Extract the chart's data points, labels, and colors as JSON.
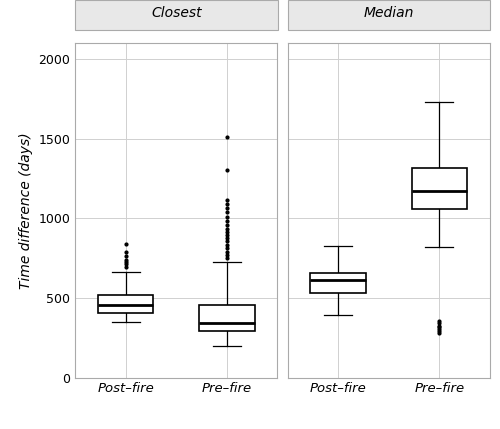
{
  "panels": [
    "Closest",
    "Median"
  ],
  "categories": [
    "Post–fire",
    "Pre–fire"
  ],
  "ylabel": "Time difference (days)",
  "ylim": [
    0,
    2100
  ],
  "yticks": [
    0,
    500,
    1000,
    1500,
    2000
  ],
  "background_color": "#ffffff",
  "panel_bg_color": "#ffffff",
  "header_bg_color": "#e8e8e8",
  "grid_color": "#d0d0d0",
  "box_color": "#000000",
  "box_fill": "#ffffff",
  "boxplots": {
    "Closest": {
      "Post–fire": {
        "q1": 405,
        "median": 455,
        "q3": 515,
        "whisker_low": 350,
        "whisker_high": 665,
        "outliers_high": [
          695,
          710,
          725,
          740,
          760,
          790,
          840
        ],
        "outliers_low": []
      },
      "Pre–fire": {
        "q1": 290,
        "median": 345,
        "q3": 455,
        "whisker_low": 195,
        "whisker_high": 725,
        "outliers_high": [
          750,
          770,
          790,
          810,
          830,
          855,
          875,
          895,
          915,
          935,
          960,
          985,
          1010,
          1040,
          1065,
          1090,
          1115,
          1300,
          1510
        ],
        "outliers_low": []
      }
    },
    "Median": {
      "Post–fire": {
        "q1": 530,
        "median": 610,
        "q3": 655,
        "whisker_low": 395,
        "whisker_high": 825,
        "outliers_high": [],
        "outliers_low": []
      },
      "Pre–fire": {
        "q1": 1055,
        "median": 1170,
        "q3": 1315,
        "whisker_low": 820,
        "whisker_high": 1730,
        "outliers_high": [],
        "outliers_low": [
          280,
          295,
          305,
          315,
          325,
          340,
          355
        ]
      }
    }
  }
}
